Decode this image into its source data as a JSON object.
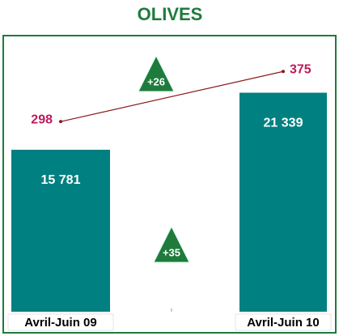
{
  "chart_data": {
    "type": "bar",
    "title": "OLIVES",
    "categories": [
      "Avril-Juin 09",
      "Avril-Juin 10"
    ],
    "series": [
      {
        "type": "bar",
        "color": "#008080",
        "values": [
          15781,
          21339
        ],
        "value_labels": [
          "15 781",
          "21 339"
        ]
      },
      {
        "type": "line",
        "axis": "y2",
        "color": "#8b1a1a",
        "label_color": "#c0185a",
        "values": [
          298,
          375
        ]
      }
    ],
    "ylim": [
      0,
      26900
    ],
    "y2lim": [
      6,
      430
    ],
    "annotations": [
      {
        "text": "+26"
      },
      {
        "text": "+35"
      }
    ],
    "annotation_color": "#1e7b3c"
  }
}
